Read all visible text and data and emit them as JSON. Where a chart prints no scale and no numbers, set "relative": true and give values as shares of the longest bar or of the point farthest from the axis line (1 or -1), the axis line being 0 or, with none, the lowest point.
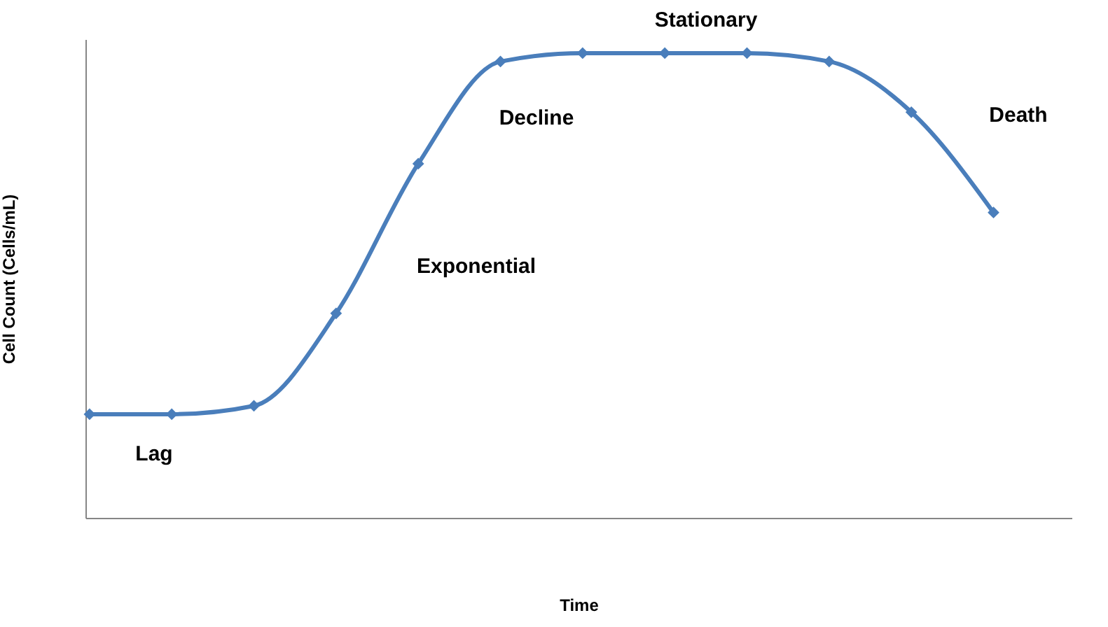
{
  "chart_data": {
    "type": "line",
    "xlabel": "Time",
    "ylabel": "Cell Count (Cells/mL)",
    "relative": true,
    "categories": [
      null,
      null,
      null,
      null,
      null,
      null,
      null,
      null,
      null,
      null,
      null,
      null
    ],
    "series": [
      {
        "color": "#4a7ebb",
        "values": [
          0.223,
          0.223,
          0.241,
          0.44,
          0.762,
          0.982,
          1,
          1,
          1,
          0.982,
          0.873,
          0.657
        ]
      }
    ],
    "annotations": [
      "Lag",
      "Exponential",
      "Decline",
      "Stationary",
      "Death"
    ],
    "marker": "diamond",
    "line_style": "solid",
    "grid": false,
    "legend": false
  }
}
